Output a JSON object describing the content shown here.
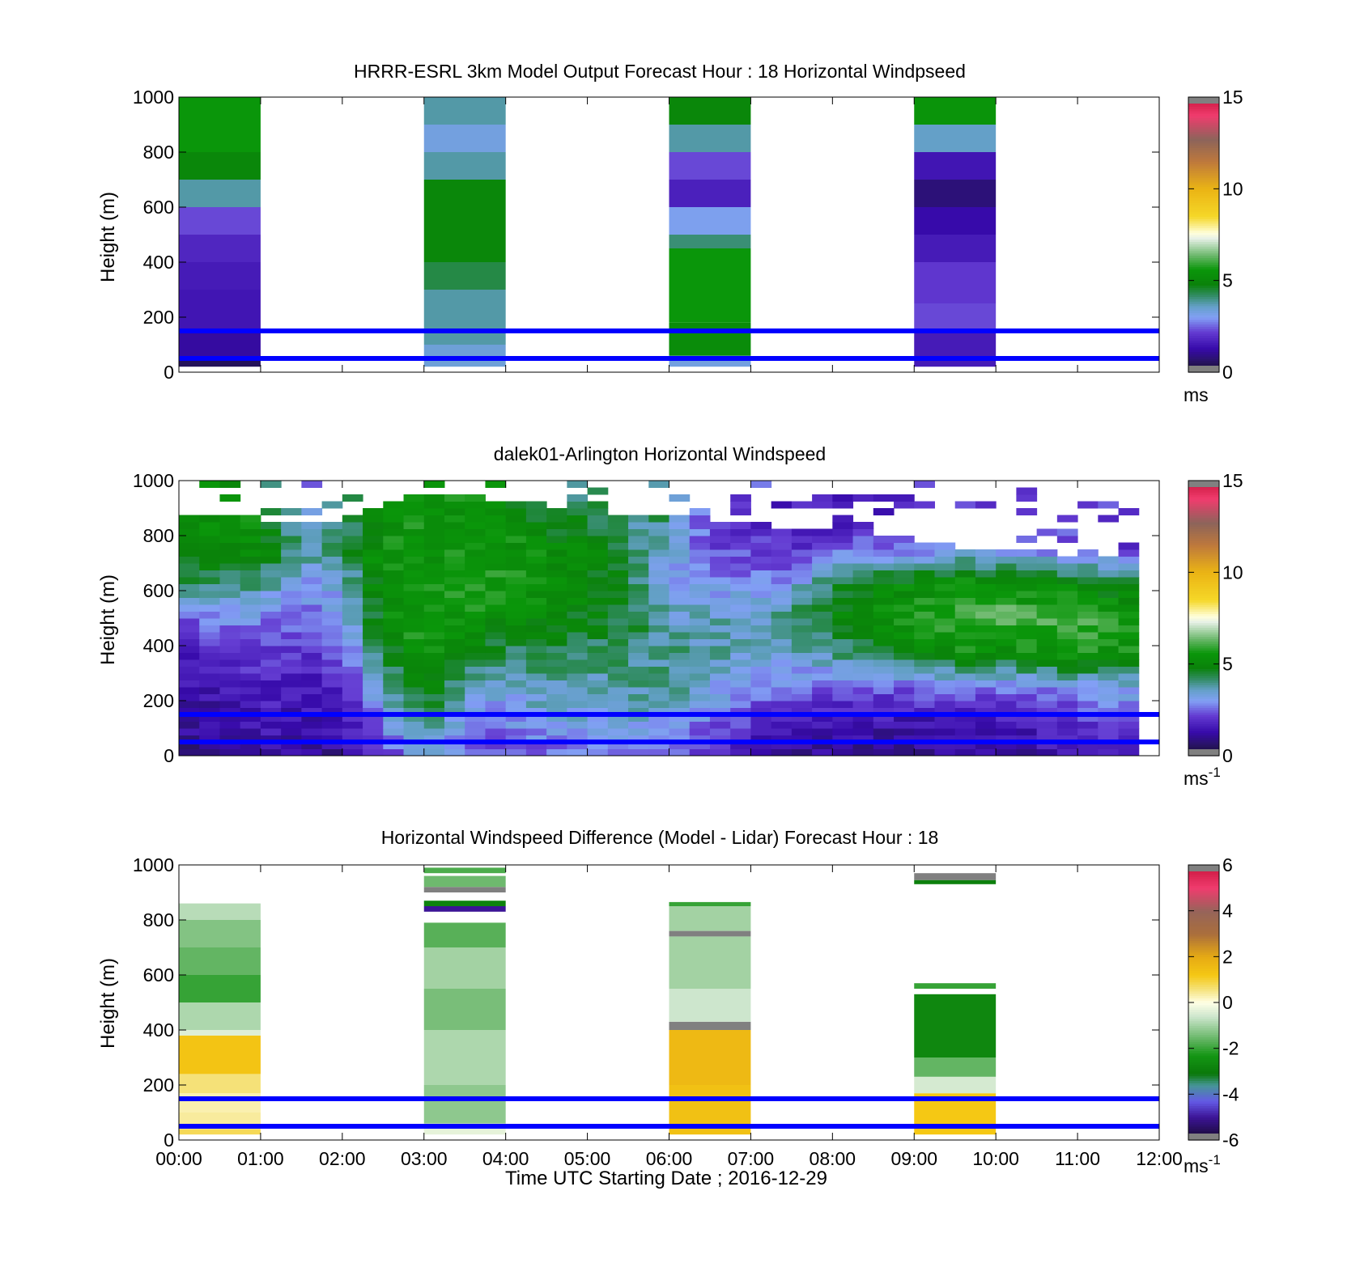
{
  "chart_data": [
    {
      "type": "heatmap",
      "title": "HRRR-ESRL 3km Model Output   Forecast Hour : 18 Horizontal Windpseed",
      "ylabel": "Height (m)",
      "xlabel": "",
      "ylim": [
        0,
        1000
      ],
      "yticks": [
        "0",
        "200",
        "400",
        "600",
        "800",
        "1000"
      ],
      "xlim": [
        0,
        12
      ],
      "colorbar": {
        "ticks": [
          "0",
          "5",
          "10",
          "15"
        ],
        "unit": "ms",
        "unit_sup": "",
        "range": [
          0,
          15
        ],
        "scale": "speed"
      },
      "reference_lines_m": [
        50,
        150
      ],
      "columns": [
        {
          "t0": 0,
          "t1": 1,
          "cells": [
            {
              "h0": 20,
              "h1": 50,
              "v": 0.5
            },
            {
              "h0": 50,
              "h1": 150,
              "v": 1.2
            },
            {
              "h0": 150,
              "h1": 300,
              "v": 1.5
            },
            {
              "h0": 300,
              "h1": 400,
              "v": 1.6
            },
            {
              "h0": 400,
              "h1": 500,
              "v": 1.8
            },
            {
              "h0": 500,
              "h1": 600,
              "v": 2.3
            },
            {
              "h0": 600,
              "h1": 700,
              "v": 3.8
            },
            {
              "h0": 700,
              "h1": 800,
              "v": 5.0
            },
            {
              "h0": 800,
              "h1": 1000,
              "v": 5.6
            }
          ]
        },
        {
          "t0": 3,
          "t1": 4,
          "cells": [
            {
              "h0": 20,
              "h1": 100,
              "v": 3.4
            },
            {
              "h0": 100,
              "h1": 300,
              "v": 3.8
            },
            {
              "h0": 300,
              "h1": 400,
              "v": 4.4
            },
            {
              "h0": 400,
              "h1": 700,
              "v": 5.0
            },
            {
              "h0": 700,
              "h1": 800,
              "v": 3.8
            },
            {
              "h0": 800,
              "h1": 900,
              "v": 3.3
            },
            {
              "h0": 900,
              "h1": 1000,
              "v": 3.8
            }
          ]
        },
        {
          "t0": 6,
          "t1": 7,
          "cells": [
            {
              "h0": 20,
              "h1": 60,
              "v": 3.3
            },
            {
              "h0": 60,
              "h1": 180,
              "v": 5.2
            },
            {
              "h0": 180,
              "h1": 450,
              "v": 5.6
            },
            {
              "h0": 450,
              "h1": 500,
              "v": 4.1
            },
            {
              "h0": 500,
              "h1": 600,
              "v": 3.1
            },
            {
              "h0": 600,
              "h1": 700,
              "v": 1.7
            },
            {
              "h0": 700,
              "h1": 800,
              "v": 2.3
            },
            {
              "h0": 800,
              "h1": 900,
              "v": 3.8
            },
            {
              "h0": 900,
              "h1": 1000,
              "v": 5.0
            }
          ]
        },
        {
          "t0": 9,
          "t1": 10,
          "cells": [
            {
              "h0": 20,
              "h1": 150,
              "v": 1.6
            },
            {
              "h0": 150,
              "h1": 250,
              "v": 2.3
            },
            {
              "h0": 250,
              "h1": 400,
              "v": 2.1
            },
            {
              "h0": 400,
              "h1": 500,
              "v": 1.6
            },
            {
              "h0": 500,
              "h1": 600,
              "v": 1.3
            },
            {
              "h0": 600,
              "h1": 700,
              "v": 0.8
            },
            {
              "h0": 700,
              "h1": 800,
              "v": 1.5
            },
            {
              "h0": 800,
              "h1": 900,
              "v": 3.6
            },
            {
              "h0": 900,
              "h1": 1000,
              "v": 5.5
            }
          ]
        }
      ]
    },
    {
      "type": "heatmap",
      "title": "dalek01-Arlington  Horizontal Windspeed",
      "ylabel": "Height (m)",
      "xlabel": "",
      "ylim": [
        0,
        1000
      ],
      "yticks": [
        "0",
        "200",
        "400",
        "600",
        "800",
        "1000"
      ],
      "xlim": [
        0,
        12
      ],
      "colorbar": {
        "ticks": [
          "0",
          "5",
          "10",
          "15"
        ],
        "unit": "ms",
        "unit_sup": "-1",
        "range": [
          0,
          15
        ],
        "scale": "speed"
      },
      "reference_lines_m": [
        50,
        150
      ],
      "time_step_h": 0.25,
      "height_step_m": 25,
      "profiles": [
        {
          "t": 0.0,
          "top": 880,
          "v": [
            1.0,
            1.2,
            1.4,
            1.6,
            2.2,
            4.5,
            5.2,
            5.4,
            5.2
          ]
        },
        {
          "t": 0.5,
          "top": 870,
          "v": [
            0.8,
            1.2,
            1.6,
            2.0,
            2.8,
            4.0,
            5.2,
            5.4,
            5.3
          ]
        },
        {
          "t": 1.0,
          "top": 860,
          "v": [
            1.2,
            1.6,
            1.8,
            2.2,
            2.8,
            4.0,
            5.2,
            5.4,
            5.0
          ]
        },
        {
          "t": 1.5,
          "top": 850,
          "v": [
            1.0,
            1.4,
            1.6,
            1.9,
            2.6,
            2.8,
            4.0,
            3.0,
            2.4
          ]
        },
        {
          "t": 2.0,
          "top": 860,
          "v": [
            1.2,
            1.4,
            1.8,
            2.6,
            3.0,
            3.4,
            4.2,
            4.0,
            3.2
          ]
        },
        {
          "t": 2.5,
          "top": 900,
          "v": [
            2.0,
            2.8,
            3.6,
            4.5,
            5.2,
            5.5,
            5.6,
            5.2,
            5.4
          ]
        },
        {
          "t": 3.0,
          "top": 960,
          "v": [
            3.6,
            4.2,
            5.2,
            5.6,
            5.8,
            5.6,
            5.4,
            5.6,
            5.2
          ]
        },
        {
          "t": 3.5,
          "top": 950,
          "v": [
            2.4,
            3.0,
            3.6,
            4.8,
            5.4,
            6.0,
            5.6,
            5.4,
            5.5
          ]
        },
        {
          "t": 4.0,
          "top": 930,
          "v": [
            2.2,
            2.8,
            3.4,
            4.2,
            5.2,
            5.6,
            5.5,
            5.4,
            5.2
          ]
        },
        {
          "t": 4.5,
          "top": 900,
          "v": [
            2.4,
            3.2,
            3.8,
            4.4,
            5.0,
            5.4,
            5.2,
            4.6,
            3.0
          ]
        },
        {
          "t": 5.0,
          "top": 900,
          "v": [
            2.6,
            3.3,
            3.6,
            4.2,
            4.8,
            5.2,
            5.0,
            4.6,
            4.0
          ]
        },
        {
          "t": 5.5,
          "top": 880,
          "v": [
            2.6,
            3.4,
            3.8,
            4.2,
            4.6,
            4.4,
            4.2,
            4.0,
            3.8
          ]
        },
        {
          "t": 6.0,
          "top": 870,
          "v": [
            2.4,
            3.2,
            3.8,
            4.0,
            3.6,
            3.0,
            3.4,
            4.2,
            3.6
          ]
        },
        {
          "t": 6.5,
          "top": 860,
          "v": [
            1.8,
            2.6,
            3.4,
            3.8,
            3.6,
            3.0,
            2.4,
            2.2,
            3.0
          ]
        },
        {
          "t": 7.0,
          "top": 840,
          "v": [
            1.4,
            2.0,
            2.8,
            3.4,
            3.6,
            2.8,
            2.2,
            1.8,
            2.6
          ]
        },
        {
          "t": 7.5,
          "top": 830,
          "v": [
            1.2,
            1.8,
            2.6,
            3.6,
            4.2,
            3.0,
            1.8,
            1.4,
            2.4
          ]
        },
        {
          "t": 8.0,
          "top": 820,
          "v": [
            1.0,
            1.6,
            2.4,
            4.0,
            4.8,
            4.6,
            2.4,
            1.4,
            2.0
          ]
        },
        {
          "t": 8.5,
          "top": 810,
          "v": [
            1.0,
            1.4,
            2.4,
            4.4,
            5.2,
            5.0,
            2.6,
            1.6,
            2.0
          ]
        },
        {
          "t": 9.0,
          "top": 790,
          "v": [
            1.0,
            1.4,
            2.4,
            4.8,
            5.6,
            5.2,
            2.8,
            1.8,
            2.2
          ]
        },
        {
          "t": 9.5,
          "top": 760,
          "v": [
            1.0,
            1.6,
            2.6,
            5.4,
            6.2,
            5.6,
            3.0,
            2.0,
            2.0
          ]
        },
        {
          "t": 10.0,
          "top": 750,
          "v": [
            1.0,
            1.6,
            2.6,
            5.2,
            6.4,
            5.4,
            2.8,
            2.0,
            2.2
          ]
        },
        {
          "t": 10.5,
          "top": 740,
          "v": [
            1.2,
            1.8,
            2.8,
            5.4,
            6.0,
            5.2,
            2.6,
            2.0,
            2.2
          ]
        },
        {
          "t": 11.0,
          "top": 730,
          "v": [
            1.4,
            2.0,
            3.0,
            5.8,
            6.2,
            5.0,
            2.4,
            2.0,
            2.2
          ]
        },
        {
          "t": 11.5,
          "top": 720,
          "v": [
            1.6,
            2.2,
            3.2,
            5.4,
            5.6,
            4.6,
            2.2,
            2.0,
            2.2
          ]
        }
      ]
    },
    {
      "type": "heatmap",
      "title": "Horizontal Windspeed Difference (Model - Lidar) Forecast Hour : 18",
      "ylabel": "Height (m)",
      "xlabel": "Time UTC  Starting Date ; 2016-12-29",
      "ylim": [
        0,
        1000
      ],
      "yticks": [
        "0",
        "200",
        "400",
        "600",
        "800",
        "1000"
      ],
      "xlim": [
        0,
        12
      ],
      "xticks": [
        "00:00",
        "01:00",
        "02:00",
        "03:00",
        "04:00",
        "05:00",
        "06:00",
        "07:00",
        "08:00",
        "09:00",
        "10:00",
        "11:00",
        "12:00"
      ],
      "colorbar": {
        "ticks": [
          "-6",
          "-4",
          "-2",
          "0",
          "2",
          "4",
          "6"
        ],
        "unit": "ms",
        "unit_sup": "-1",
        "range": [
          -6,
          6
        ],
        "scale": "diff"
      },
      "reference_lines_m": [
        50,
        150
      ],
      "columns": [
        {
          "t0": 0,
          "t1": 1,
          "cells": [
            {
              "h0": 20,
              "h1": 40,
              "v": 0.8
            },
            {
              "h0": 40,
              "h1": 100,
              "v": 0.4
            },
            {
              "h0": 100,
              "h1": 170,
              "v": 0.3
            },
            {
              "h0": 170,
              "h1": 240,
              "v": 0.6
            },
            {
              "h0": 240,
              "h1": 380,
              "v": 1.3
            },
            {
              "h0": 380,
              "h1": 400,
              "v": -0.4
            },
            {
              "h0": 400,
              "h1": 500,
              "v": -0.9
            },
            {
              "h0": 500,
              "h1": 600,
              "v": -2.0
            },
            {
              "h0": 600,
              "h1": 700,
              "v": -1.6
            },
            {
              "h0": 700,
              "h1": 800,
              "v": -1.3
            },
            {
              "h0": 800,
              "h1": 860,
              "v": -0.8
            }
          ]
        },
        {
          "t0": 3,
          "t1": 4,
          "cells": [
            {
              "h0": 20,
              "h1": 60,
              "v": -0.3
            },
            {
              "h0": 60,
              "h1": 200,
              "v": -1.2
            },
            {
              "h0": 200,
              "h1": 400,
              "v": -0.9
            },
            {
              "h0": 400,
              "h1": 550,
              "v": -1.4
            },
            {
              "h0": 550,
              "h1": 700,
              "v": -1.0
            },
            {
              "h0": 700,
              "h1": 790,
              "v": -1.7
            },
            {
              "h0": 830,
              "h1": 850,
              "v": -5.0
            },
            {
              "h0": 850,
              "h1": 870,
              "v": -2.8
            },
            {
              "h0": 900,
              "h1": 920,
              "v": -6.1
            },
            {
              "h0": 920,
              "h1": 960,
              "v": -1.5
            },
            {
              "h0": 970,
              "h1": 990,
              "v": -1.8
            }
          ]
        },
        {
          "t0": 6,
          "t1": 7,
          "cells": [
            {
              "h0": 20,
              "h1": 200,
              "v": 1.4
            },
            {
              "h0": 200,
              "h1": 400,
              "v": 1.6
            },
            {
              "h0": 400,
              "h1": 430,
              "v": -6.1
            },
            {
              "h0": 430,
              "h1": 550,
              "v": -0.6
            },
            {
              "h0": 550,
              "h1": 740,
              "v": -1.0
            },
            {
              "h0": 740,
              "h1": 760,
              "v": -6.1
            },
            {
              "h0": 760,
              "h1": 850,
              "v": -1.0
            },
            {
              "h0": 850,
              "h1": 865,
              "v": -2.0
            }
          ]
        },
        {
          "t0": 9,
          "t1": 10,
          "cells": [
            {
              "h0": 20,
              "h1": 170,
              "v": 1.2
            },
            {
              "h0": 170,
              "h1": 230,
              "v": -0.5
            },
            {
              "h0": 230,
              "h1": 300,
              "v": -1.6
            },
            {
              "h0": 300,
              "h1": 530,
              "v": -2.7
            },
            {
              "h0": 550,
              "h1": 570,
              "v": -2.0
            },
            {
              "h0": 930,
              "h1": 945,
              "v": -2.9
            },
            {
              "h0": 945,
              "h1": 970,
              "v": -6.1
            }
          ]
        }
      ]
    }
  ]
}
